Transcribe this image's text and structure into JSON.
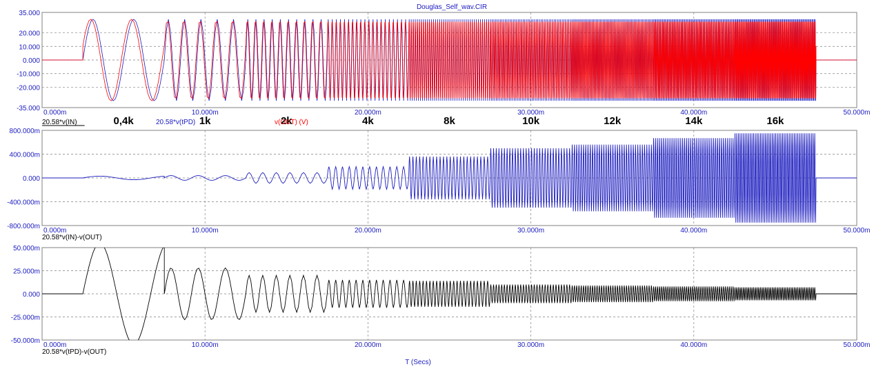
{
  "title": "Douglas_Self_wav.CIR",
  "xlabel": "T (Secs)",
  "x_ticks": [
    "0.000m",
    "10.000m",
    "20.000m",
    "30.000m",
    "40.000m",
    "50.000m"
  ],
  "colors": {
    "in": "#1b1bbf",
    "out": "#ff0000",
    "black": "#000000",
    "grid": "#808080"
  },
  "chart_data": [
    {
      "type": "line",
      "xlim": [
        0,
        50
      ],
      "ylim": [
        -35,
        35
      ],
      "y_ticks": [
        "35.000",
        "20.000",
        "10.000",
        "0.000",
        "-10.000",
        "-20.000",
        "-35.000"
      ],
      "y_tick_values": [
        35,
        20,
        10,
        0,
        -10,
        -20,
        -35
      ],
      "legend": [
        {
          "name": "20.58*v(IN)",
          "color": "#000000",
          "underline": true
        },
        {
          "name": "20.58*v(tPD)",
          "color": "#1b1bbf"
        },
        {
          "name": "v(OUT) (V)",
          "color": "#ff0000"
        }
      ],
      "freq_labels": [
        "0,4k",
        "1k",
        "2k",
        "4k",
        "8k",
        "10k",
        "12k",
        "14k",
        "16k"
      ],
      "amplitude": 30,
      "segments": [
        {
          "start": 0,
          "end": 2.5,
          "freq": 0
        },
        {
          "start": 2.5,
          "end": 7.5,
          "freq": 0.4
        },
        {
          "start": 7.5,
          "end": 12.5,
          "freq": 1
        },
        {
          "start": 12.5,
          "end": 17.5,
          "freq": 2
        },
        {
          "start": 17.5,
          "end": 22.5,
          "freq": 4
        },
        {
          "start": 22.5,
          "end": 27.5,
          "freq": 8
        },
        {
          "start": 27.5,
          "end": 32.5,
          "freq": 10
        },
        {
          "start": 32.5,
          "end": 37.5,
          "freq": 12
        },
        {
          "start": 37.5,
          "end": 42.5,
          "freq": 14
        },
        {
          "start": 42.5,
          "end": 47.5,
          "freq": 16
        },
        {
          "start": 47.5,
          "end": 50,
          "freq": 0
        }
      ]
    },
    {
      "type": "line",
      "xlim": [
        0,
        50
      ],
      "ylim": [
        -800,
        800
      ],
      "y_ticks": [
        "800.000m",
        "400.000m",
        "0.000",
        "-400.000m",
        "-800.000m"
      ],
      "y_tick_values": [
        800,
        400,
        0,
        -400,
        -800
      ],
      "legend": [
        {
          "name": "20.58*v(IN)-v(OUT)",
          "color": "#000000"
        }
      ],
      "segment_amplitudes": [
        0,
        30,
        40,
        90,
        190,
        360,
        500,
        560,
        670,
        750,
        0
      ]
    },
    {
      "type": "line",
      "xlim": [
        0,
        50
      ],
      "ylim": [
        -50,
        50
      ],
      "y_ticks": [
        "50.000m",
        "25.000m",
        "0.000",
        "-25.000m",
        "-50.000m"
      ],
      "y_tick_values": [
        50,
        25,
        0,
        -25,
        -50
      ],
      "legend": [
        {
          "name": "20.58*v(tPD)-v(OUT)",
          "color": "#000000"
        }
      ],
      "segment_amplitudes": [
        0,
        55,
        28,
        20,
        15,
        14,
        10,
        9,
        8,
        7,
        0
      ]
    }
  ]
}
